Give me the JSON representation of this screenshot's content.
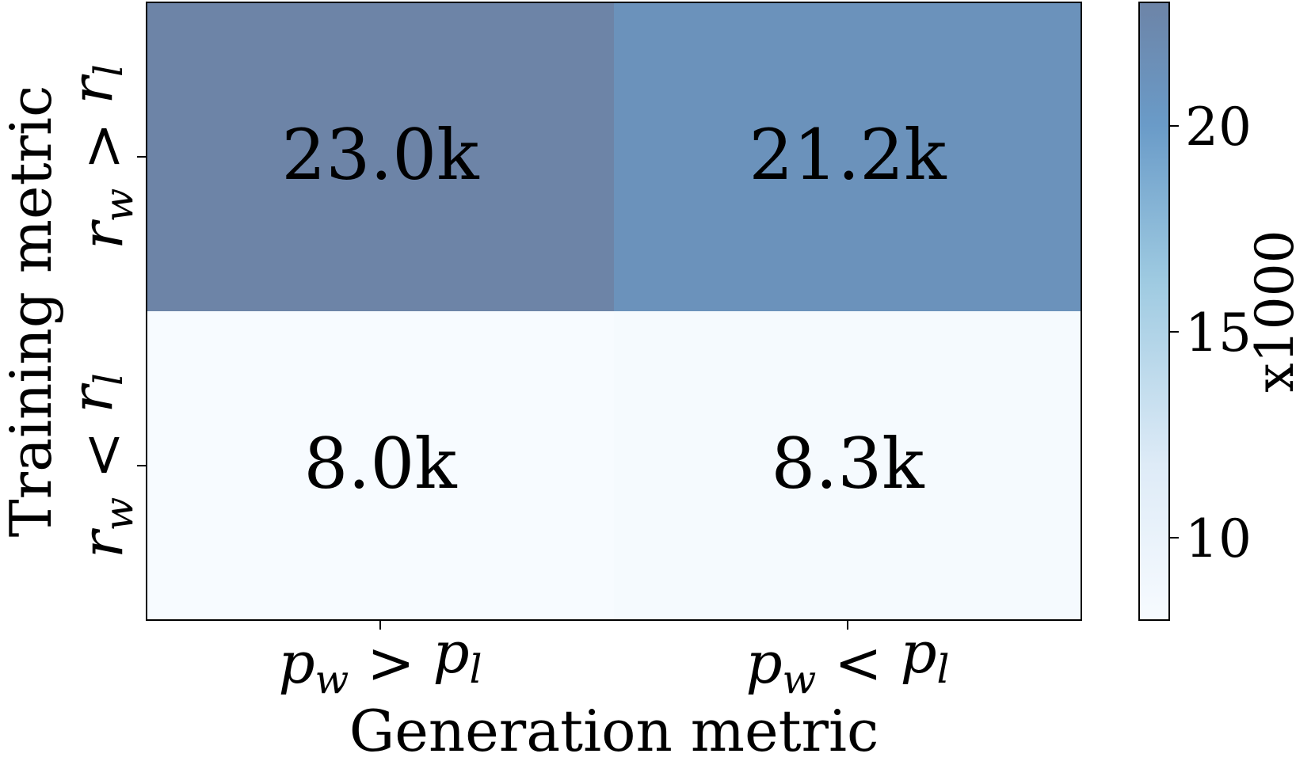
{
  "chart_data": {
    "type": "heatmap",
    "xlabel": "Generation metric",
    "ylabel": "Training metric",
    "x_categories": [
      {
        "base": "p",
        "sub1": "w",
        "op": ">",
        "base2": "p",
        "sub2": "l"
      },
      {
        "base": "p",
        "sub1": "w",
        "op": "<",
        "base2": "p",
        "sub2": "l"
      }
    ],
    "y_categories": [
      {
        "base": "r",
        "sub1": "w",
        "op": ">",
        "base2": "r",
        "sub2": "l"
      },
      {
        "base": "r",
        "sub1": "w",
        "op": "<",
        "base2": "r",
        "sub2": "l"
      }
    ],
    "values": [
      [
        23.0,
        21.2
      ],
      [
        8.0,
        8.3
      ]
    ],
    "cell_labels": [
      [
        "23.0k",
        "21.2k"
      ],
      [
        "8.0k",
        "8.3k"
      ]
    ],
    "colorbar": {
      "label": "x1000",
      "range": [
        8.0,
        23.0
      ],
      "ticks": [
        10,
        15,
        20
      ],
      "tick_labels": [
        "10",
        "15",
        "20"
      ]
    },
    "colors": {
      "low": "#f7fbff",
      "mid": "#8dbfe0",
      "high_blue": "#6a9bc8",
      "top": "#6d84a7",
      "frame": "#000000"
    }
  }
}
